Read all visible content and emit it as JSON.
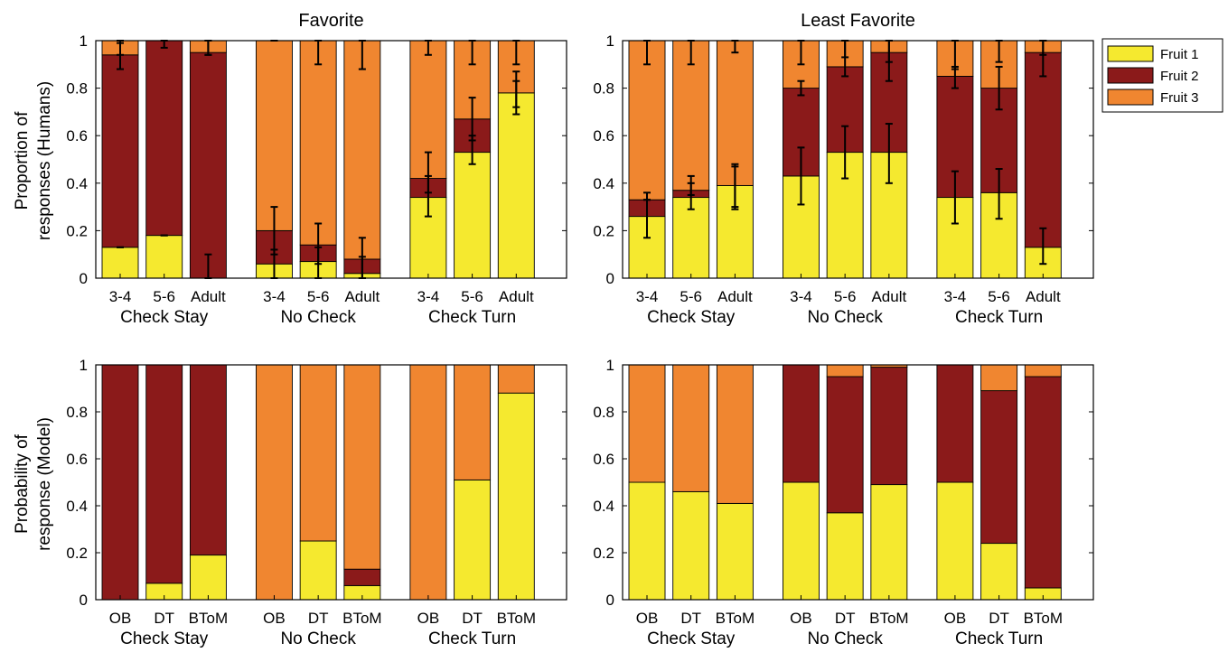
{
  "colors": {
    "fruit1": "#f5e92f",
    "fruit2": "#8b1a1a",
    "fruit3": "#f08630",
    "axis": "#000000",
    "errorbar": "#000000"
  },
  "legend": {
    "position": "top-right",
    "entries": [
      "Fruit 1",
      "Fruit 2",
      "Fruit 3"
    ]
  },
  "row_labels": {
    "top": [
      "Proportion of",
      "responses (Humans)"
    ],
    "bottom": [
      "Probability of",
      "response (Model)"
    ]
  },
  "group_labels": [
    "Check Stay",
    "No Check",
    "Check Turn"
  ],
  "chart_data": [
    {
      "type": "bar",
      "stacked": true,
      "title": "Favorite",
      "ylabel": "Proportion of responses (Humans)",
      "ylim": [
        0,
        1
      ],
      "yticks": [
        "0",
        "0.2",
        "0.4",
        "0.6",
        "0.8",
        "1"
      ],
      "groups": [
        "Check Stay",
        "No Check",
        "Check Turn"
      ],
      "categories": [
        "3-4",
        "5-6",
        "Adult"
      ],
      "series": [
        {
          "name": "Fruit 1",
          "values": [
            [
              0.13,
              0.18,
              0.0
            ],
            [
              0.06,
              0.07,
              0.02
            ],
            [
              0.34,
              0.53,
              0.78
            ]
          ]
        },
        {
          "name": "Fruit 2",
          "values": [
            [
              0.81,
              0.82,
              0.95
            ],
            [
              0.14,
              0.07,
              0.06
            ],
            [
              0.08,
              0.14,
              0.0
            ]
          ]
        },
        {
          "name": "Fruit 3",
          "values": [
            [
              0.06,
              0.0,
              0.05
            ],
            [
              0.8,
              0.86,
              0.92
            ],
            [
              0.58,
              0.33,
              0.22
            ]
          ]
        }
      ],
      "error_bars": [
        [
          [
            0.13,
            0.13,
            0.88,
            0.99,
            0.94,
            1.0
          ],
          [
            0.18,
            0.18,
            0.97,
            1.0,
            0.0,
            0.0
          ],
          [
            0.0,
            0.1,
            0.94,
            1.0,
            0.94,
            1.0
          ]
        ],
        [
          [
            0.0,
            0.12,
            0.1,
            0.3,
            1.0,
            1.0
          ],
          [
            0.0,
            0.13,
            0.06,
            0.23,
            0.9,
            1.0
          ],
          [
            0.0,
            0.09,
            0.0,
            0.17,
            0.88,
            1.0
          ]
        ],
        [
          [
            0.26,
            0.43,
            0.36,
            0.53,
            0.94,
            1.0
          ],
          [
            0.48,
            0.6,
            0.58,
            0.76,
            0.9,
            1.0
          ],
          [
            0.69,
            0.87,
            0.72,
            0.83,
            0.9,
            1.0
          ]
        ]
      ]
    },
    {
      "type": "bar",
      "stacked": true,
      "title": "Least Favorite",
      "ylim": [
        0,
        1
      ],
      "yticks": [
        "0",
        "0.2",
        "0.4",
        "0.6",
        "0.8",
        "1"
      ],
      "groups": [
        "Check Stay",
        "No Check",
        "Check Turn"
      ],
      "categories": [
        "3-4",
        "5-6",
        "Adult"
      ],
      "series": [
        {
          "name": "Fruit 1",
          "values": [
            [
              0.26,
              0.34,
              0.39
            ],
            [
              0.43,
              0.53,
              0.53
            ],
            [
              0.34,
              0.36,
              0.13
            ]
          ]
        },
        {
          "name": "Fruit 2",
          "values": [
            [
              0.07,
              0.03,
              0.0
            ],
            [
              0.37,
              0.36,
              0.42
            ],
            [
              0.51,
              0.44,
              0.82
            ]
          ]
        },
        {
          "name": "Fruit 3",
          "values": [
            [
              0.67,
              0.63,
              0.61
            ],
            [
              0.2,
              0.11,
              0.05
            ],
            [
              0.15,
              0.2,
              0.05
            ]
          ]
        }
      ],
      "error_bars": [
        [
          [
            0.17,
            0.36,
            0.33,
            0.33,
            0.9,
            1.0
          ],
          [
            0.29,
            0.4,
            0.35,
            0.43,
            0.9,
            1.0
          ],
          [
            0.29,
            0.47,
            0.3,
            0.48,
            0.95,
            1.0
          ]
        ],
        [
          [
            0.31,
            0.55,
            0.77,
            0.83,
            0.9,
            1.0
          ],
          [
            0.42,
            0.64,
            0.85,
            1.0,
            0.93,
            1.0
          ],
          [
            0.4,
            0.65,
            0.83,
            1.0,
            0.91,
            1.0
          ]
        ],
        [
          [
            0.23,
            0.45,
            0.8,
            0.89,
            0.88,
            1.0
          ],
          [
            0.25,
            0.46,
            0.71,
            0.89,
            0.91,
            1.0
          ],
          [
            0.06,
            0.21,
            0.85,
            1.0,
            0.94,
            1.0
          ]
        ]
      ]
    },
    {
      "type": "bar",
      "stacked": true,
      "ylabel": "Probability of response (Model)",
      "ylim": [
        0,
        1
      ],
      "yticks": [
        "0",
        "0.2",
        "0.4",
        "0.6",
        "0.8",
        "1"
      ],
      "groups": [
        "Check Stay",
        "No Check",
        "Check Turn"
      ],
      "categories": [
        "OB",
        "DT",
        "BToM"
      ],
      "series": [
        {
          "name": "Fruit 1",
          "values": [
            [
              0.0,
              0.07,
              0.19
            ],
            [
              0.0,
              0.25,
              0.06
            ],
            [
              0.0,
              0.51,
              0.88
            ]
          ]
        },
        {
          "name": "Fruit 2",
          "values": [
            [
              1.0,
              0.93,
              0.81
            ],
            [
              0.0,
              0.0,
              0.07
            ],
            [
              0.0,
              0.0,
              0.0
            ]
          ]
        },
        {
          "name": "Fruit 3",
          "values": [
            [
              0.0,
              0.0,
              0.0
            ],
            [
              1.0,
              0.75,
              0.87
            ],
            [
              1.0,
              0.49,
              0.12
            ]
          ]
        }
      ]
    },
    {
      "type": "bar",
      "stacked": true,
      "ylim": [
        0,
        1
      ],
      "yticks": [
        "0",
        "0.2",
        "0.4",
        "0.6",
        "0.8",
        "1"
      ],
      "groups": [
        "Check Stay",
        "No Check",
        "Check Turn"
      ],
      "categories": [
        "OB",
        "DT",
        "BToM"
      ],
      "series": [
        {
          "name": "Fruit 1",
          "values": [
            [
              0.5,
              0.46,
              0.41
            ],
            [
              0.5,
              0.37,
              0.49
            ],
            [
              0.5,
              0.24,
              0.05
            ]
          ]
        },
        {
          "name": "Fruit 2",
          "values": [
            [
              0.0,
              0.0,
              0.0
            ],
            [
              0.5,
              0.58,
              0.5
            ],
            [
              0.5,
              0.65,
              0.9
            ]
          ]
        },
        {
          "name": "Fruit 3",
          "values": [
            [
              0.5,
              0.54,
              0.59
            ],
            [
              0.0,
              0.05,
              0.01
            ],
            [
              0.0,
              0.11,
              0.05
            ]
          ]
        }
      ]
    }
  ]
}
